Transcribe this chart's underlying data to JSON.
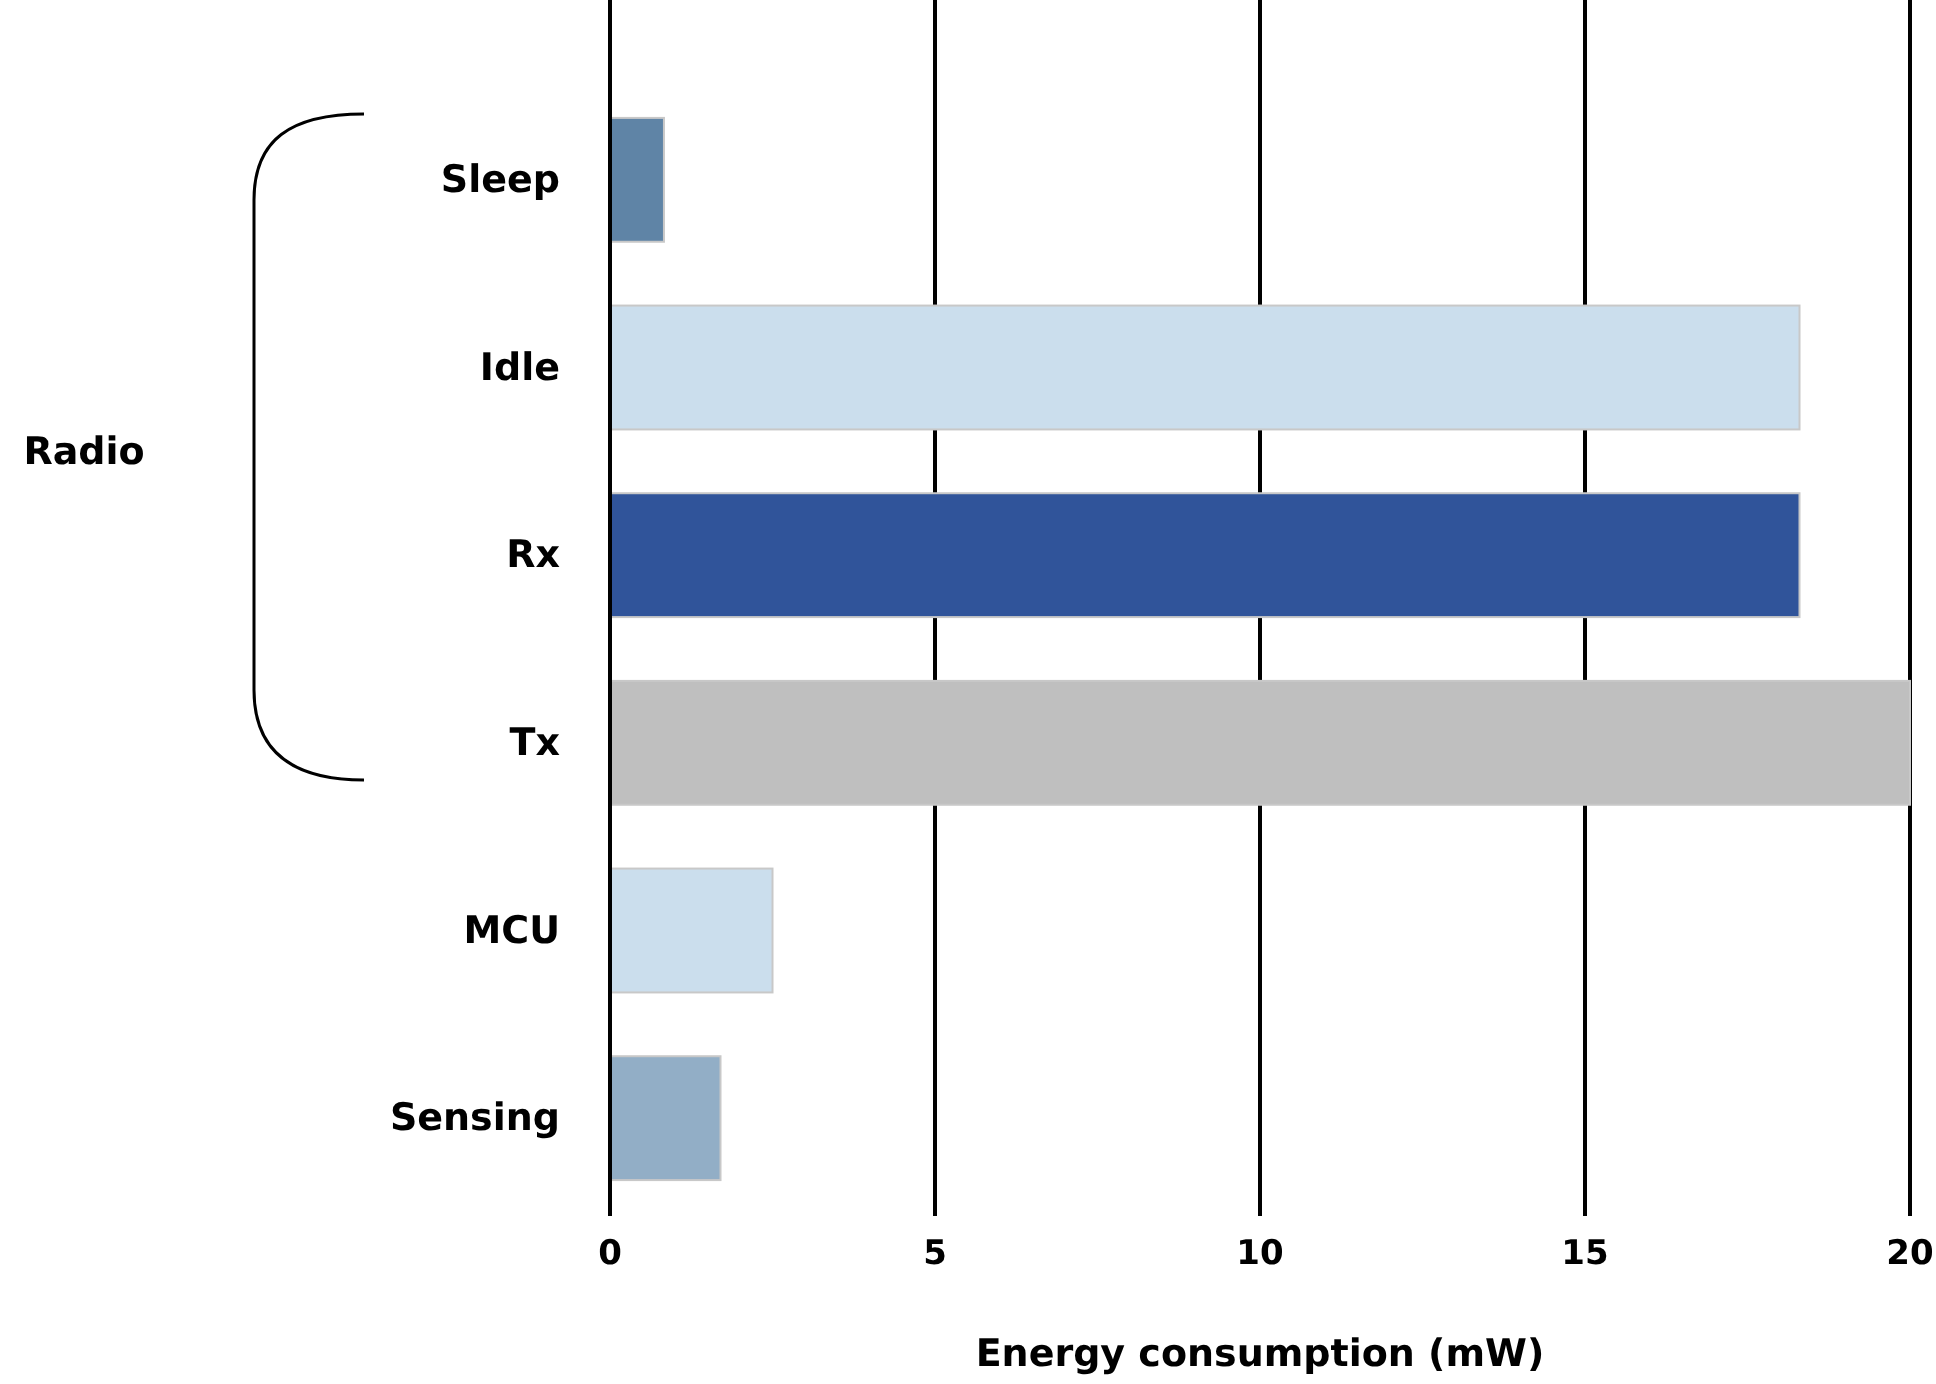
{
  "chart_data": {
    "type": "bar",
    "orientation": "horizontal",
    "categories": [
      "Sleep",
      "Idle",
      "Rx",
      "Tx",
      "MCU",
      "Sensing"
    ],
    "values": [
      0.83,
      18.3,
      18.3,
      20,
      2.5,
      1.7
    ],
    "colors": [
      "#5f84a6",
      "#cbdeed",
      "#30549a",
      "#bfbfbf",
      "#cbdeed",
      "#92aec6"
    ],
    "xlim": [
      0,
      20
    ],
    "xticks": [
      0,
      5,
      10,
      15,
      20
    ],
    "grid": "x",
    "xlabel": "Energy consumption (mW)",
    "annotations": [
      "Radio"
    ]
  }
}
